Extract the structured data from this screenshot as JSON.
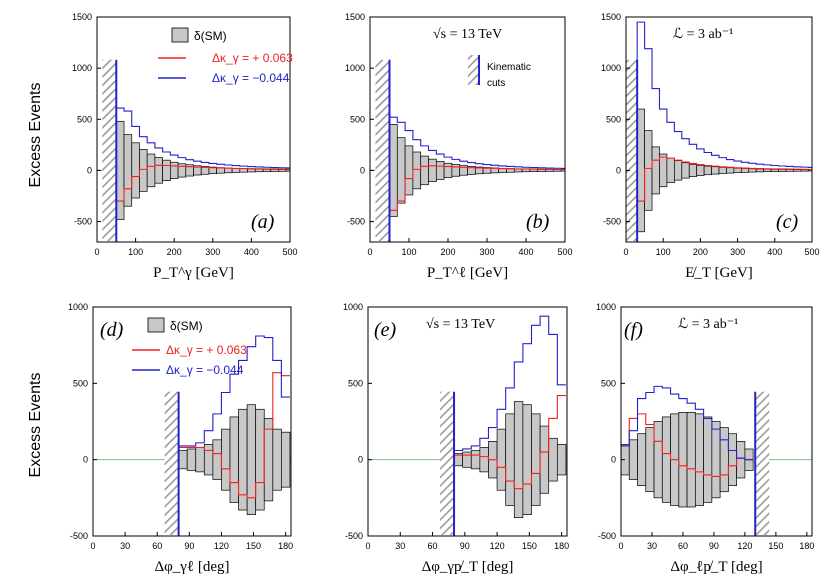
{
  "colors": {
    "sm_fill": "#c8c8c8",
    "red": "#ee2222",
    "blue": "#2222cc",
    "zero_line": "#7fbf7f",
    "cut_hatch": "#9a9a9a"
  },
  "ylabel": "Excess  Events",
  "legend": {
    "sm": "δ(SM)",
    "red": "Δκ_γ = + 0.063",
    "blue": "Δκ_γ = −0.044",
    "cuts": "Kinematic cuts"
  },
  "texts": {
    "sqrt_s": "√s = 13 TeV",
    "lumi": "ℒ = 3 ab⁻¹"
  },
  "chart_data": [
    {
      "panel": "(a)",
      "type": "bar",
      "xlabel": "P_T^γ [GeV]",
      "xlim": [
        0,
        500
      ],
      "ylim": [
        -700,
        1500
      ],
      "xticks": [
        0,
        100,
        200,
        300,
        400,
        500
      ],
      "yticks": [
        -500,
        0,
        500,
        1000,
        1500
      ],
      "cut": 50,
      "edges": [
        50,
        70,
        90,
        110,
        130,
        150,
        170,
        190,
        210,
        230,
        250,
        270,
        290,
        310,
        330,
        350,
        370,
        390,
        410,
        430,
        450,
        470,
        490,
        510
      ],
      "sm_half": [
        480,
        350,
        270,
        205,
        160,
        125,
        100,
        80,
        65,
        55,
        45,
        38,
        32,
        27,
        23,
        20,
        17,
        15,
        13,
        11,
        10,
        9,
        8
      ],
      "red": [
        -300,
        -180,
        -60,
        10,
        40,
        50,
        48,
        44,
        40,
        36,
        32,
        29,
        26,
        24,
        22,
        20,
        18,
        17,
        16,
        15,
        14,
        13,
        12
      ],
      "blue": [
        610,
        580,
        430,
        330,
        270,
        220,
        180,
        150,
        125,
        105,
        90,
        78,
        68,
        60,
        53,
        47,
        42,
        38,
        34,
        31,
        28,
        26,
        24
      ]
    },
    {
      "panel": "(b)",
      "type": "bar",
      "xlabel": "P_T^ℓ [GeV]",
      "xlim": [
        0,
        500
      ],
      "ylim": [
        -700,
        1500
      ],
      "xticks": [
        0,
        100,
        200,
        300,
        400,
        500
      ],
      "yticks": [
        -500,
        0,
        500,
        1000,
        1500
      ],
      "cut": 50,
      "edges": [
        50,
        70,
        90,
        110,
        130,
        150,
        170,
        190,
        210,
        230,
        250,
        270,
        290,
        310,
        330,
        350,
        370,
        390,
        410,
        430,
        450,
        470,
        490,
        510
      ],
      "sm_half": [
        450,
        320,
        240,
        180,
        140,
        110,
        88,
        70,
        57,
        47,
        40,
        33,
        28,
        24,
        21,
        18,
        15,
        13,
        12,
        10,
        9,
        8,
        7
      ],
      "red": [
        -390,
        -300,
        -80,
        10,
        40,
        45,
        42,
        38,
        34,
        30,
        27,
        24,
        22,
        20,
        18,
        16,
        15,
        14,
        13,
        12,
        11,
        10,
        9
      ],
      "blue": [
        520,
        470,
        390,
        300,
        240,
        195,
        160,
        130,
        108,
        90,
        77,
        66,
        57,
        50,
        44,
        39,
        35,
        31,
        28,
        25,
        23,
        21,
        19
      ]
    },
    {
      "panel": "(c)",
      "type": "bar",
      "xlabel": "E̸_T [GeV]",
      "xlim": [
        0,
        500
      ],
      "ylim": [
        -700,
        1500
      ],
      "xticks": [
        0,
        100,
        200,
        300,
        400,
        500
      ],
      "yticks": [
        -500,
        0,
        500,
        1000,
        1500
      ],
      "cut": 30,
      "edges": [
        30,
        50,
        70,
        90,
        110,
        130,
        150,
        170,
        190,
        210,
        230,
        250,
        270,
        290,
        310,
        330,
        350,
        370,
        390,
        410,
        430,
        450,
        470,
        490,
        510
      ],
      "sm_half": [
        600,
        390,
        230,
        160,
        120,
        95,
        75,
        60,
        50,
        42,
        36,
        30,
        26,
        22,
        19,
        16,
        14,
        12,
        11,
        10,
        9,
        8,
        7,
        6
      ],
      "red": [
        -300,
        20,
        100,
        130,
        120,
        100,
        82,
        68,
        57,
        48,
        41,
        35,
        30,
        26,
        23,
        20,
        18,
        16,
        15,
        14,
        13,
        12,
        11,
        10
      ],
      "blue": [
        1450,
        1190,
        800,
        600,
        470,
        380,
        310,
        255,
        210,
        175,
        148,
        125,
        106,
        91,
        79,
        69,
        61,
        54,
        48,
        43,
        39,
        35,
        32,
        29
      ]
    },
    {
      "panel": "(d)",
      "type": "bar",
      "xlabel": "Δφ_γℓ [deg]",
      "xlim": [
        0,
        185
      ],
      "ylim": [
        -500,
        1000
      ],
      "xticks": [
        0,
        30,
        60,
        90,
        120,
        150,
        180
      ],
      "yticks": [
        -500,
        0,
        500,
        1000
      ],
      "cut": 80,
      "edges": [
        80,
        88,
        96,
        104,
        112,
        120,
        128,
        136,
        144,
        152,
        160,
        168,
        176,
        184
      ],
      "sm_half": [
        60,
        70,
        80,
        100,
        130,
        200,
        280,
        330,
        360,
        330,
        270,
        200,
        180
      ],
      "red": [
        80,
        80,
        80,
        60,
        40,
        -60,
        -150,
        -230,
        -250,
        -150,
        200,
        570,
        550
      ],
      "blue": [
        90,
        90,
        110,
        190,
        300,
        440,
        560,
        650,
        740,
        810,
        800,
        650,
        410
      ]
    },
    {
      "panel": "(e)",
      "type": "bar",
      "xlabel": "Δφ_γp̸_T [deg]",
      "xlim": [
        0,
        185
      ],
      "ylim": [
        -500,
        1000
      ],
      "xticks": [
        0,
        30,
        60,
        90,
        120,
        150,
        180
      ],
      "yticks": [
        -500,
        0,
        500,
        1000
      ],
      "cut": 80,
      "edges": [
        80,
        88,
        96,
        104,
        112,
        120,
        128,
        136,
        144,
        152,
        160,
        168,
        176,
        184
      ],
      "sm_half": [
        40,
        50,
        60,
        80,
        120,
        200,
        300,
        380,
        360,
        300,
        220,
        140,
        100
      ],
      "red": [
        30,
        30,
        30,
        20,
        0,
        -50,
        -140,
        -190,
        -160,
        -90,
        50,
        270,
        420
      ],
      "blue": [
        60,
        70,
        90,
        140,
        210,
        330,
        470,
        640,
        760,
        880,
        940,
        820,
        490
      ]
    },
    {
      "panel": "(f)",
      "type": "bar",
      "xlabel": "Δφ_ℓp̸_T [deg]",
      "xlim": [
        0,
        185
      ],
      "ylim": [
        -500,
        1000
      ],
      "xticks": [
        0,
        30,
        60,
        90,
        120,
        150,
        180
      ],
      "yticks": [
        -500,
        0,
        500,
        1000
      ],
      "cut": 130,
      "edges": [
        0,
        8,
        16,
        24,
        32,
        40,
        48,
        56,
        64,
        72,
        80,
        88,
        96,
        104,
        112,
        120,
        128
      ],
      "sm_half": [
        100,
        130,
        170,
        210,
        250,
        280,
        300,
        310,
        310,
        300,
        280,
        250,
        210,
        170,
        120,
        70
      ],
      "red": [
        90,
        270,
        300,
        230,
        120,
        40,
        0,
        -40,
        -60,
        -80,
        -100,
        -110,
        -100,
        -40,
        10,
        0
      ],
      "blue": [
        90,
        190,
        400,
        440,
        480,
        470,
        430,
        400,
        370,
        330,
        270,
        200,
        130,
        60,
        10,
        0
      ]
    }
  ]
}
